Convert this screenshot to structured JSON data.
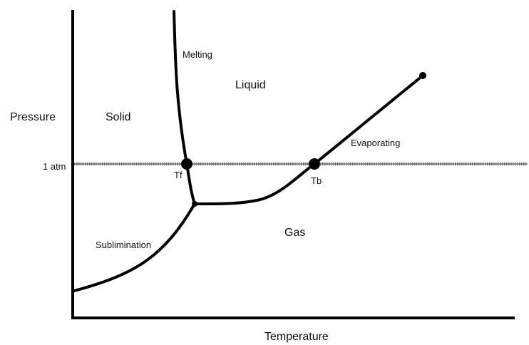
{
  "axes": {
    "y_label": "Pressure",
    "x_label": "Temperature",
    "reference_line_label": "1 atm"
  },
  "regions": {
    "solid": "Solid",
    "liquid": "Liquid",
    "gas": "Gas"
  },
  "curves": {
    "melting": "Melting",
    "evaporating": "Evaporating",
    "sublimination": "Sublimination"
  },
  "points": {
    "freezing": "Tf",
    "boiling": "Tb"
  },
  "colors": {
    "line": "#000000",
    "reference_line": "#555555"
  }
}
